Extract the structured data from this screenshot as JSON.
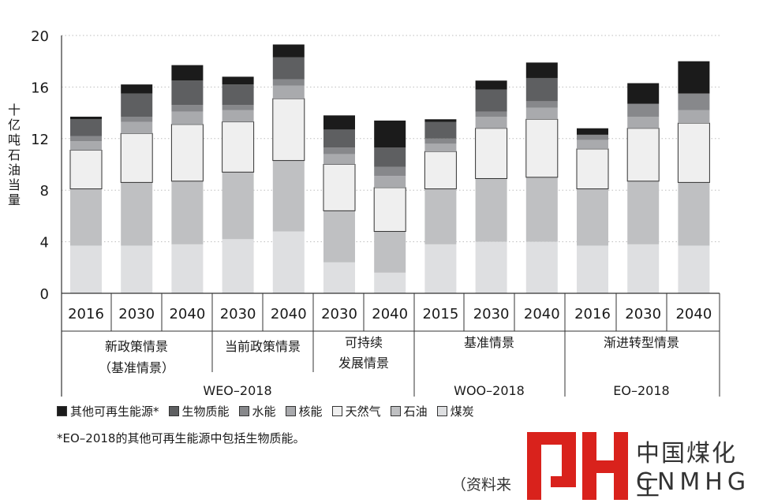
{
  "chart_data": {
    "type": "bar",
    "stacked": true,
    "ylabel": "十亿吨石油当量",
    "ylim": [
      0,
      20
    ],
    "yticks": [
      0,
      4,
      8,
      12,
      16,
      20
    ],
    "grid": "horizontal dotted",
    "categories": [
      "2016",
      "2030",
      "2040",
      "2030",
      "2040",
      "2030",
      "2040",
      "2015",
      "2030",
      "2040",
      "2016",
      "2030",
      "2040"
    ],
    "groups": [
      {
        "label": "新政策情景\n（基准情景）",
        "super": "WEO–2018"
      },
      {
        "label": "当前政策情景",
        "super": "WEO–2018"
      },
      {
        "label": "可持续\n发展情景",
        "super": "WEO–2018"
      },
      {
        "label": "基准情景",
        "super": "WOO–2018"
      },
      {
        "label": "渐进转型情景",
        "super": "EO–2018"
      }
    ],
    "group_labels": [
      "新政策情景",
      "（基准情景）",
      "当前政策情景",
      "可持续",
      "发展情景",
      "基准情景",
      "渐进转型情景"
    ],
    "super_labels": [
      "WEO–2018",
      "WOO–2018",
      "EO–2018"
    ],
    "series": [
      {
        "name": "煤炭",
        "color": "#dedfe1",
        "values": [
          3.7,
          3.7,
          3.8,
          4.2,
          4.8,
          2.4,
          1.6,
          3.8,
          4.0,
          4.0,
          3.7,
          3.8,
          3.7
        ]
      },
      {
        "name": "石油",
        "color": "#bfc0c2",
        "values": [
          4.4,
          4.9,
          4.9,
          5.2,
          5.5,
          4.0,
          3.2,
          4.3,
          4.9,
          5.0,
          4.4,
          4.9,
          4.9
        ]
      },
      {
        "name": "天然气",
        "color": "#efefef",
        "values": [
          3.0,
          3.8,
          4.4,
          3.9,
          4.8,
          3.6,
          3.4,
          2.9,
          3.9,
          4.5,
          3.1,
          4.1,
          4.6
        ]
      },
      {
        "name": "核能",
        "color": "#a9aaad",
        "values": [
          0.7,
          0.9,
          1.0,
          0.9,
          1.0,
          0.8,
          0.9,
          0.6,
          0.9,
          0.9,
          0.7,
          0.9,
          1.0
        ]
      },
      {
        "name": "水能",
        "color": "#87888b",
        "values": [
          0.4,
          0.4,
          0.5,
          0.4,
          0.5,
          0.5,
          0.7,
          0.4,
          0.4,
          0.5,
          0.4,
          1.0,
          1.3
        ]
      },
      {
        "name": "生物质能",
        "color": "#5e5f61",
        "values": [
          1.3,
          1.8,
          1.9,
          1.6,
          1.7,
          1.4,
          1.5,
          1.3,
          1.7,
          1.8,
          0.0,
          0.0,
          0.0
        ]
      },
      {
        "name": "其他可再生能源*",
        "color": "#1b1b1b",
        "values": [
          0.2,
          0.7,
          1.2,
          0.6,
          1.0,
          1.1,
          2.1,
          0.2,
          0.7,
          1.2,
          0.5,
          1.6,
          2.5
        ]
      }
    ],
    "legend_order": [
      "其他可再生能源*",
      "生物质能",
      "水能",
      "核能",
      "天然气",
      "石油",
      "煤炭"
    ],
    "legend_position": "bottom"
  },
  "footnote": "*EO–2018的其他可再生能源中包括生物质能。",
  "source": "（资料来",
  "logo": {
    "cn": "中国煤化工",
    "en": "CNMHG",
    "accent": "#d9221c"
  }
}
